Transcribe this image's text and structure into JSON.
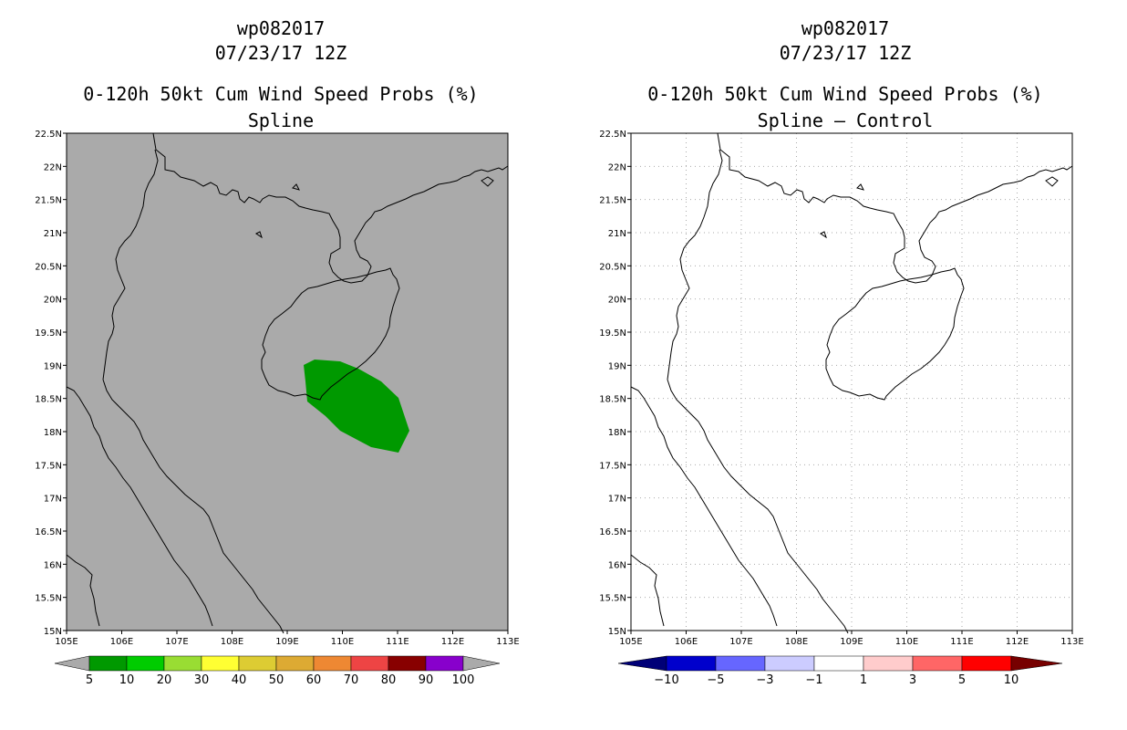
{
  "panels": [
    {
      "id": "left",
      "storm_id": "wp082017",
      "datetime": "07/23/17 12Z",
      "product": "0-120h 50kt Cum Wind Speed Probs (%)",
      "subtitle": "Spline",
      "background_color": "#aaaaaa",
      "grid": false,
      "filled_region": {
        "value_class": "5-10",
        "color": "#009900"
      },
      "colorbar": {
        "colors": [
          "#009900",
          "#00cc00",
          "#99dd33",
          "#ffff33",
          "#ddcc33",
          "#ddaa33",
          "#ee8833",
          "#ee4444",
          "#880000",
          "#8800cc"
        ],
        "labels": [
          "5",
          "10",
          "20",
          "30",
          "40",
          "50",
          "60",
          "70",
          "80",
          "90",
          "100"
        ],
        "end_color": "#aaaaaa"
      }
    },
    {
      "id": "right",
      "storm_id": "wp082017",
      "datetime": "07/23/17 12Z",
      "product": "0-120h 50kt Cum Wind Speed Probs (%)",
      "subtitle": "Spline – Control",
      "background_color": "#ffffff",
      "grid": true,
      "colorbar": {
        "colors": [
          "#0000cc",
          "#6666ff",
          "#ccccff",
          "#ffffff",
          "#ffcccc",
          "#ff6666",
          "#ff0000"
        ],
        "labels": [
          "−10",
          "−5",
          "−3",
          "−1",
          "1",
          "3",
          "5",
          "10"
        ],
        "end_low_color": "#000077",
        "end_high_color": "#770000"
      }
    }
  ],
  "axes": {
    "lon_ticks": [
      "105E",
      "106E",
      "107E",
      "108E",
      "109E",
      "110E",
      "111E",
      "112E",
      "113E"
    ],
    "lat_ticks": [
      "15N",
      "15.5N",
      "16N",
      "16.5N",
      "17N",
      "17.5N",
      "18N",
      "18.5N",
      "19N",
      "19.5N",
      "20N",
      "20.5N",
      "21N",
      "21.5N",
      "22N",
      "22.5N"
    ],
    "lon_range": [
      105,
      113
    ],
    "lat_range": [
      15,
      22.5
    ]
  }
}
